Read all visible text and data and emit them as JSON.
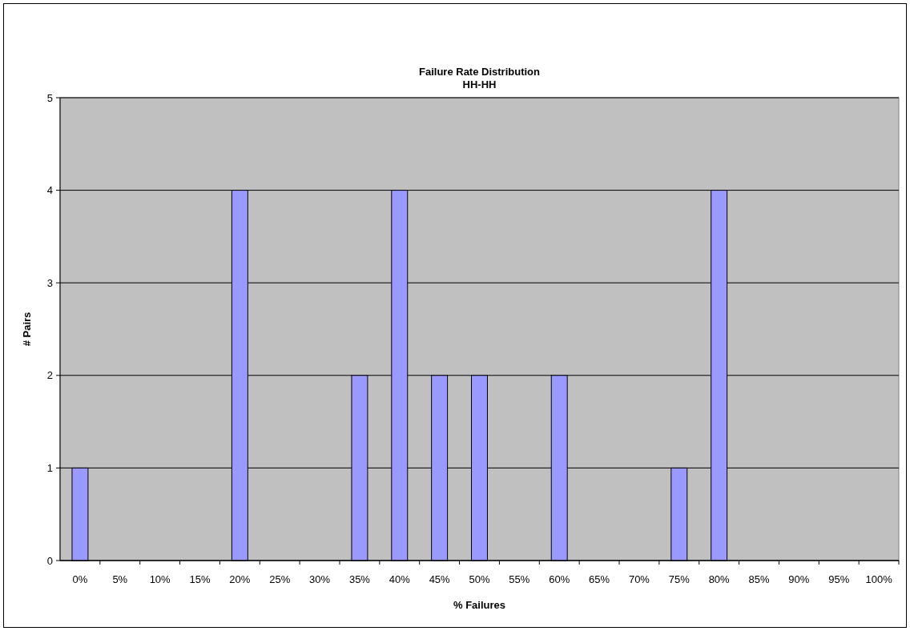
{
  "chart_data": {
    "type": "bar",
    "title": "Failure Rate Distribution",
    "subtitle": "HH-HH",
    "xlabel": "% Failures",
    "ylabel": "# Pairs",
    "categories": [
      "0%",
      "5%",
      "10%",
      "15%",
      "20%",
      "25%",
      "30%",
      "35%",
      "40%",
      "45%",
      "50%",
      "55%",
      "60%",
      "65%",
      "70%",
      "75%",
      "80%",
      "85%",
      "90%",
      "95%",
      "100%"
    ],
    "values": [
      1,
      0,
      0,
      0,
      4,
      0,
      0,
      2,
      4,
      2,
      2,
      0,
      2,
      0,
      0,
      1,
      4,
      0,
      0,
      0,
      0
    ],
    "color": "#9999ff",
    "ylim": [
      0,
      5
    ],
    "yticks": [
      0,
      1,
      2,
      3,
      4,
      5
    ],
    "grid": "y"
  }
}
